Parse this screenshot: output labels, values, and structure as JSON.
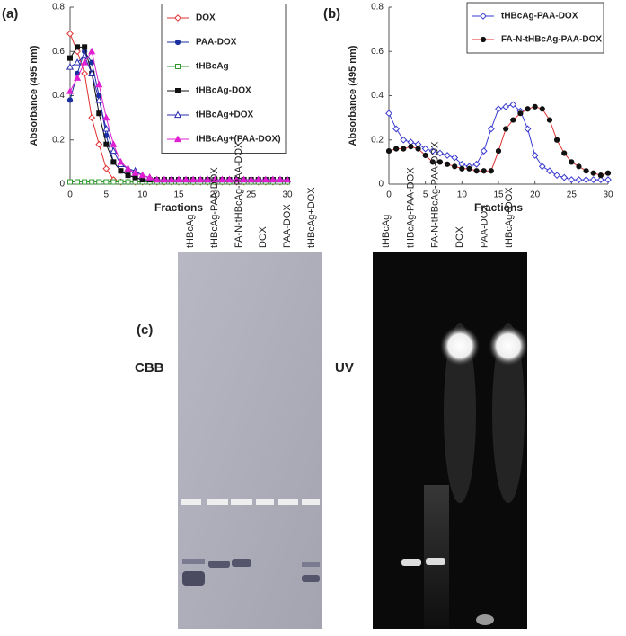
{
  "chart_data": [
    {
      "type": "line",
      "label": "(a)",
      "x_label": "Fractions",
      "y_label": "Absorbance (495 nm)",
      "x": [
        0,
        1,
        2,
        3,
        4,
        5,
        6,
        7,
        8,
        9,
        10,
        11,
        12,
        13,
        14,
        15,
        16,
        17,
        18,
        19,
        20,
        21,
        22,
        23,
        24,
        25,
        26,
        27,
        28,
        29,
        30
      ],
      "xlim": [
        0,
        30
      ],
      "xticks": [
        0,
        5,
        10,
        15,
        20,
        25,
        30
      ],
      "ylim": [
        0,
        0.8
      ],
      "yticks": [
        0,
        0.2,
        0.4,
        0.6,
        0.8
      ],
      "grid": false,
      "legend": "upper right",
      "series": [
        {
          "name": "DOX",
          "color": "#e03030",
          "marker": "diamond-open",
          "values": [
            0.68,
            0.6,
            0.5,
            0.3,
            0.18,
            0.07,
            0.02,
            0.01,
            0.01,
            0.01,
            0.01,
            0.01,
            0.01,
            0.01,
            0.01,
            0.01,
            0.01,
            0.01,
            0.01,
            0.01,
            0.01,
            0.01,
            0.01,
            0.01,
            0.01,
            0.01,
            0.01,
            0.01,
            0.01,
            0.01,
            0.01
          ]
        },
        {
          "name": "PAA-DOX",
          "color": "#1a2fa0",
          "marker": "circle-filled",
          "values": [
            0.38,
            0.5,
            0.6,
            0.55,
            0.4,
            0.22,
            0.1,
            0.06,
            0.04,
            0.03,
            0.02,
            0.02,
            0.02,
            0.02,
            0.02,
            0.02,
            0.02,
            0.02,
            0.02,
            0.02,
            0.02,
            0.02,
            0.02,
            0.02,
            0.02,
            0.02,
            0.02,
            0.02,
            0.02,
            0.02,
            0.02
          ]
        },
        {
          "name": "tHBcAg",
          "color": "#2e9a2e",
          "marker": "square-open",
          "values": [
            0.01,
            0.01,
            0.01,
            0.01,
            0.01,
            0.01,
            0.01,
            0.01,
            0.01,
            0.01,
            0.01,
            0.01,
            0.01,
            0.01,
            0.01,
            0.01,
            0.01,
            0.01,
            0.01,
            0.01,
            0.01,
            0.01,
            0.01,
            0.01,
            0.01,
            0.01,
            0.01,
            0.01,
            0.01,
            0.01,
            0.01
          ]
        },
        {
          "name": "tHBcAg-DOX",
          "color": "#111111",
          "marker": "square-filled",
          "values": [
            0.57,
            0.62,
            0.62,
            0.5,
            0.32,
            0.18,
            0.1,
            0.06,
            0.04,
            0.03,
            0.02,
            0.02,
            0.02,
            0.02,
            0.02,
            0.02,
            0.02,
            0.02,
            0.02,
            0.02,
            0.02,
            0.02,
            0.02,
            0.02,
            0.02,
            0.02,
            0.02,
            0.02,
            0.02,
            0.02,
            0.02
          ]
        },
        {
          "name": "tHBcAg+DOX",
          "color": "#2a2ab0",
          "marker": "triangle-open",
          "values": [
            0.53,
            0.55,
            0.58,
            0.5,
            0.38,
            0.25,
            0.15,
            0.09,
            0.07,
            0.06,
            0.04,
            0.03,
            0.02,
            0.02,
            0.02,
            0.02,
            0.02,
            0.02,
            0.02,
            0.02,
            0.02,
            0.02,
            0.02,
            0.02,
            0.02,
            0.02,
            0.02,
            0.02,
            0.02,
            0.02,
            0.02
          ]
        },
        {
          "name": "tHBcAg+(PAA-DOX)",
          "color": "#e020d0",
          "marker": "triangle-filled",
          "values": [
            0.42,
            0.48,
            0.55,
            0.6,
            0.45,
            0.3,
            0.18,
            0.1,
            0.07,
            0.05,
            0.04,
            0.03,
            0.02,
            0.02,
            0.02,
            0.02,
            0.02,
            0.02,
            0.02,
            0.02,
            0.02,
            0.02,
            0.02,
            0.02,
            0.02,
            0.02,
            0.02,
            0.02,
            0.02,
            0.02,
            0.02
          ]
        }
      ]
    },
    {
      "type": "line",
      "label": "(b)",
      "x_label": "Fractions",
      "y_label": "Absorbance (495 nm)",
      "x": [
        0,
        1,
        2,
        3,
        4,
        5,
        6,
        7,
        8,
        9,
        10,
        11,
        12,
        13,
        14,
        15,
        16,
        17,
        18,
        19,
        20,
        21,
        22,
        23,
        24,
        25,
        26,
        27,
        28,
        29,
        30
      ],
      "xlim": [
        0,
        30
      ],
      "xticks": [
        0,
        5,
        10,
        15,
        20,
        25,
        30
      ],
      "ylim": [
        0,
        0.8
      ],
      "yticks": [
        0,
        0.2,
        0.4,
        0.6,
        0.8
      ],
      "grid": false,
      "legend": "upper right",
      "series": [
        {
          "name": "tHBcAg-PAA-DOX",
          "color": "#3a3ad0",
          "marker": "diamond-open",
          "values": [
            0.32,
            0.25,
            0.2,
            0.19,
            0.18,
            0.16,
            0.15,
            0.14,
            0.13,
            0.12,
            0.09,
            0.08,
            0.09,
            0.15,
            0.25,
            0.34,
            0.35,
            0.36,
            0.33,
            0.25,
            0.13,
            0.08,
            0.06,
            0.04,
            0.03,
            0.02,
            0.02,
            0.02,
            0.02,
            0.02,
            0.02
          ]
        },
        {
          "name": "FA-N-tHBcAg-PAA-DOX",
          "color": "#e03030",
          "marker": "circle-black",
          "values": [
            0.15,
            0.16,
            0.16,
            0.17,
            0.16,
            0.13,
            0.1,
            0.1,
            0.09,
            0.08,
            0.07,
            0.07,
            0.06,
            0.06,
            0.06,
            0.15,
            0.25,
            0.29,
            0.32,
            0.34,
            0.35,
            0.34,
            0.29,
            0.2,
            0.14,
            0.1,
            0.08,
            0.06,
            0.05,
            0.04,
            0.05
          ]
        }
      ]
    }
  ],
  "panel_c": {
    "label": "(c)",
    "gels": [
      {
        "label": "CBB",
        "lanes": [
          "tHBcAg",
          "tHBcAg-PAA-DOX",
          "FA-N-tHBcAg-PAA-DOX",
          "DOX",
          "PAA-DOX",
          "tHBcAg+DOX"
        ]
      },
      {
        "label": "UV",
        "lanes": [
          "tHBcAg",
          "tHBcAg-PAA-DOX",
          "FA-N-tHBcAg-PAA-DOX",
          "DOX",
          "PAA-DOX",
          "tHBcAg+DOX"
        ]
      }
    ]
  }
}
